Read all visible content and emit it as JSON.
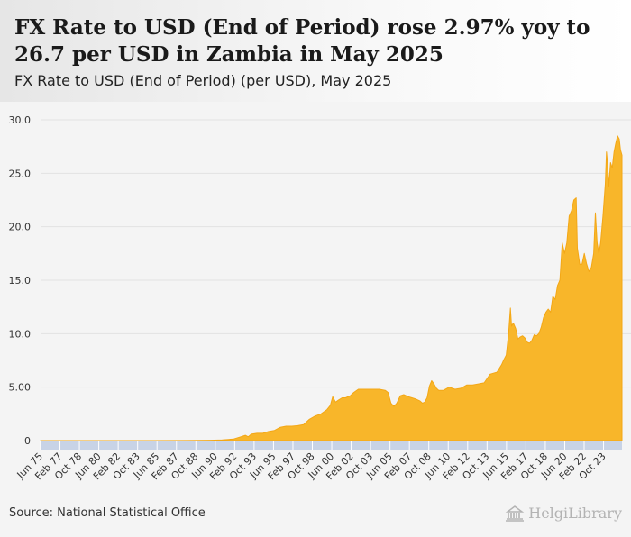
{
  "header": {
    "title": "FX Rate to USD (End of Period) rose 2.97% yoy to 26.7 per USD in Zambia in May 2025",
    "subtitle": "FX Rate to USD (End of Period) (per USD), May 2025"
  },
  "footer": {
    "source": "Source: National Statistical Office",
    "logo_text": "HelgiLibrary"
  },
  "colors": {
    "area_fill": "#f8b62a",
    "area_stroke": "#f3a716",
    "x_band": "#c8d3e6",
    "grid": "#e2e2e2"
  },
  "chart_data": {
    "type": "area",
    "title": "FX Rate to USD (End of Period) (per USD), May 2025",
    "xlabel": "",
    "ylabel": "",
    "ylim": [
      0,
      30
    ],
    "y_ticks": [
      0,
      5,
      10,
      15,
      20,
      25,
      30
    ],
    "y_tick_labels": [
      "0",
      "5.00",
      "10.0",
      "15.0",
      "20.0",
      "25.0",
      "30.0"
    ],
    "x_range": [
      1975.417,
      2025.333
    ],
    "x_ticks": [
      {
        "label": "Jun 75",
        "x": 1975.417
      },
      {
        "label": "Feb 77",
        "x": 1977.083
      },
      {
        "label": "Oct 78",
        "x": 1978.75
      },
      {
        "label": "Jun 80",
        "x": 1980.417
      },
      {
        "label": "Feb 82",
        "x": 1982.083
      },
      {
        "label": "Oct 83",
        "x": 1983.75
      },
      {
        "label": "Jun 85",
        "x": 1985.417
      },
      {
        "label": "Feb 87",
        "x": 1987.083
      },
      {
        "label": "Oct 88",
        "x": 1988.75
      },
      {
        "label": "Jun 90",
        "x": 1990.417
      },
      {
        "label": "Feb 92",
        "x": 1992.083
      },
      {
        "label": "Oct 93",
        "x": 1993.75
      },
      {
        "label": "Jun 95",
        "x": 1995.417
      },
      {
        "label": "Feb 97",
        "x": 1997.083
      },
      {
        "label": "Oct 98",
        "x": 1998.75
      },
      {
        "label": "Jun 00",
        "x": 2000.417
      },
      {
        "label": "Feb 02",
        "x": 2002.083
      },
      {
        "label": "Oct 03",
        "x": 2003.75
      },
      {
        "label": "Jun 05",
        "x": 2005.417
      },
      {
        "label": "Feb 07",
        "x": 2007.083
      },
      {
        "label": "Oct 08",
        "x": 2008.75
      },
      {
        "label": "Jun 10",
        "x": 2010.417
      },
      {
        "label": "Feb 12",
        "x": 2012.083
      },
      {
        "label": "Oct 13",
        "x": 2013.75
      },
      {
        "label": "Jun 15",
        "x": 2015.417
      },
      {
        "label": "Feb 17",
        "x": 2017.083
      },
      {
        "label": "Oct 18",
        "x": 2018.75
      },
      {
        "label": "Jun 20",
        "x": 2020.417
      },
      {
        "label": "Feb 22",
        "x": 2022.083
      },
      {
        "label": "Oct 23",
        "x": 2023.75
      }
    ],
    "series": [
      {
        "name": "FX Rate to USD (End of Period)",
        "unit": "per USD",
        "points": [
          [
            1975.417,
            0.0006
          ],
          [
            1980.0,
            0.0008
          ],
          [
            1985.0,
            0.002
          ],
          [
            1988.0,
            0.008
          ],
          [
            1990.0,
            0.03
          ],
          [
            1991.0,
            0.06
          ],
          [
            1992.0,
            0.15
          ],
          [
            1992.6,
            0.35
          ],
          [
            1993.0,
            0.5
          ],
          [
            1993.25,
            0.35
          ],
          [
            1993.5,
            0.6
          ],
          [
            1994.0,
            0.68
          ],
          [
            1994.5,
            0.68
          ],
          [
            1995.0,
            0.85
          ],
          [
            1995.5,
            0.95
          ],
          [
            1996.0,
            1.25
          ],
          [
            1996.5,
            1.35
          ],
          [
            1997.0,
            1.35
          ],
          [
            1997.5,
            1.4
          ],
          [
            1998.0,
            1.5
          ],
          [
            1998.5,
            2.0
          ],
          [
            1999.0,
            2.3
          ],
          [
            1999.5,
            2.5
          ],
          [
            2000.0,
            2.9
          ],
          [
            2000.3,
            3.3
          ],
          [
            2000.5,
            4.1
          ],
          [
            2000.75,
            3.6
          ],
          [
            2001.0,
            3.8
          ],
          [
            2001.3,
            4.0
          ],
          [
            2001.6,
            4.0
          ],
          [
            2002.0,
            4.2
          ],
          [
            2002.3,
            4.5
          ],
          [
            2002.7,
            4.8
          ],
          [
            2003.0,
            4.8
          ],
          [
            2003.5,
            4.8
          ],
          [
            2004.0,
            4.8
          ],
          [
            2004.5,
            4.8
          ],
          [
            2005.0,
            4.7
          ],
          [
            2005.25,
            4.5
          ],
          [
            2005.5,
            3.5
          ],
          [
            2005.75,
            3.2
          ],
          [
            2006.0,
            3.5
          ],
          [
            2006.3,
            4.2
          ],
          [
            2006.6,
            4.3
          ],
          [
            2007.0,
            4.1
          ],
          [
            2007.3,
            4.0
          ],
          [
            2007.6,
            3.9
          ],
          [
            2008.0,
            3.7
          ],
          [
            2008.2,
            3.5
          ],
          [
            2008.4,
            3.6
          ],
          [
            2008.6,
            4.0
          ],
          [
            2008.8,
            5.1
          ],
          [
            2009.0,
            5.6
          ],
          [
            2009.2,
            5.3
          ],
          [
            2009.4,
            4.9
          ],
          [
            2009.6,
            4.7
          ],
          [
            2010.0,
            4.7
          ],
          [
            2010.5,
            5.0
          ],
          [
            2011.0,
            4.8
          ],
          [
            2011.5,
            4.9
          ],
          [
            2012.0,
            5.2
          ],
          [
            2012.5,
            5.2
          ],
          [
            2013.0,
            5.3
          ],
          [
            2013.5,
            5.4
          ],
          [
            2014.0,
            6.2
          ],
          [
            2014.3,
            6.3
          ],
          [
            2014.6,
            6.4
          ],
          [
            2015.0,
            7.1
          ],
          [
            2015.2,
            7.6
          ],
          [
            2015.4,
            8.0
          ],
          [
            2015.6,
            10.0
          ],
          [
            2015.75,
            12.4
          ],
          [
            2015.85,
            10.7
          ],
          [
            2016.0,
            11.0
          ],
          [
            2016.2,
            10.5
          ],
          [
            2016.4,
            9.5
          ],
          [
            2016.6,
            9.7
          ],
          [
            2016.8,
            9.8
          ],
          [
            2017.0,
            9.6
          ],
          [
            2017.2,
            9.2
          ],
          [
            2017.4,
            9.1
          ],
          [
            2017.6,
            9.4
          ],
          [
            2017.8,
            9.9
          ],
          [
            2018.0,
            9.8
          ],
          [
            2018.2,
            10.0
          ],
          [
            2018.4,
            10.6
          ],
          [
            2018.6,
            11.5
          ],
          [
            2018.8,
            12.0
          ],
          [
            2019.0,
            12.3
          ],
          [
            2019.2,
            12.0
          ],
          [
            2019.4,
            13.5
          ],
          [
            2019.6,
            13.2
          ],
          [
            2019.8,
            14.5
          ],
          [
            2020.0,
            15.0
          ],
          [
            2020.2,
            18.5
          ],
          [
            2020.4,
            17.5
          ],
          [
            2020.6,
            18.5
          ],
          [
            2020.8,
            21.0
          ],
          [
            2021.0,
            21.5
          ],
          [
            2021.2,
            22.5
          ],
          [
            2021.4,
            22.7
          ],
          [
            2021.5,
            18.0
          ],
          [
            2021.7,
            16.5
          ],
          [
            2021.9,
            16.5
          ],
          [
            2022.1,
            17.5
          ],
          [
            2022.3,
            16.5
          ],
          [
            2022.5,
            15.8
          ],
          [
            2022.7,
            16.2
          ],
          [
            2022.9,
            17.5
          ],
          [
            2023.05,
            21.3
          ],
          [
            2023.2,
            18.5
          ],
          [
            2023.35,
            17.5
          ],
          [
            2023.5,
            18.5
          ],
          [
            2023.7,
            21.0
          ],
          [
            2023.9,
            24.0
          ],
          [
            2024.0,
            27.0
          ],
          [
            2024.1,
            25.8
          ],
          [
            2024.2,
            23.8
          ],
          [
            2024.35,
            26.0
          ],
          [
            2024.5,
            25.5
          ],
          [
            2024.65,
            27.0
          ],
          [
            2024.8,
            27.8
          ],
          [
            2024.95,
            28.5
          ],
          [
            2025.1,
            28.2
          ],
          [
            2025.2,
            27.2
          ],
          [
            2025.333,
            26.7
          ]
        ]
      }
    ],
    "legend": "none",
    "grid": true
  }
}
